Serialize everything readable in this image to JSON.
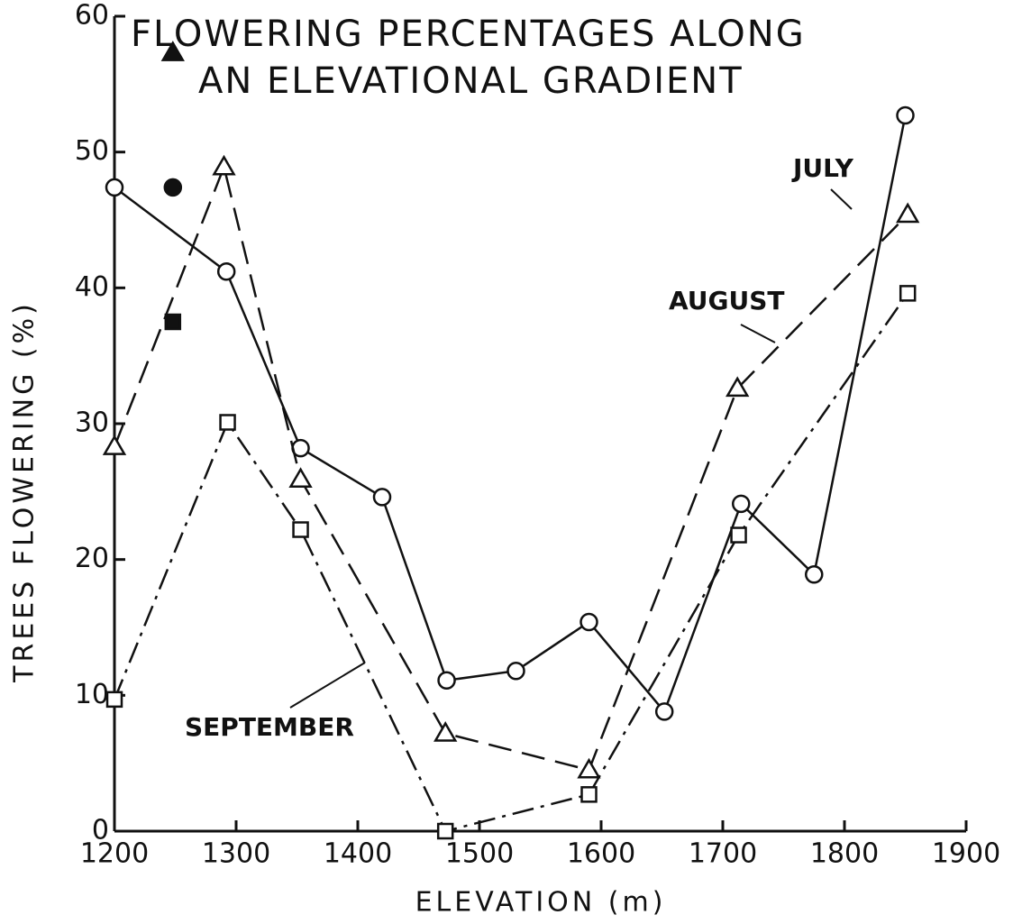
{
  "chart_data": {
    "type": "line",
    "title": [
      "FLOWERING PERCENTAGES ALONG",
      "AN ELEVATIONAL GRADIENT"
    ],
    "xlabel": "ELEVATION (m)",
    "ylabel": "TREES FLOWERING (%)",
    "xlim": [
      1200,
      1900
    ],
    "xticks": [
      1200,
      1300,
      1400,
      1500,
      1600,
      1700,
      1800,
      1900
    ],
    "ylim": [
      0,
      60
    ],
    "yticks": [
      0,
      10,
      20,
      30,
      40,
      50,
      60
    ],
    "series": [
      {
        "name": "JULY",
        "color": "#111",
        "marker": "circle",
        "dash": "solid",
        "x": [
          1200,
          1292,
          1353,
          1420,
          1473,
          1530,
          1590,
          1652,
          1715,
          1775,
          1850
        ],
        "values": [
          47.4,
          41.2,
          28.2,
          24.6,
          11.1,
          11.8,
          15.4,
          8.8,
          24.1,
          18.9,
          52.7
        ]
      },
      {
        "name": "AUGUST",
        "color": "#111",
        "marker": "triangle",
        "dash": "dashed",
        "x": [
          1200,
          1290,
          1353,
          1472,
          1590,
          1712,
          1852
        ],
        "values": [
          28.3,
          48.9,
          25.9,
          7.2,
          4.5,
          32.6,
          45.4
        ]
      },
      {
        "name": "SEPTEMBER",
        "color": "#111",
        "marker": "square",
        "dash": "dashdot",
        "x": [
          1200,
          1293,
          1353,
          1472,
          1590,
          1713,
          1852
        ],
        "values": [
          9.7,
          30.1,
          22.2,
          0,
          2.7,
          21.8,
          39.6
        ]
      },
      {
        "color": "#111",
        "marker": "triangle",
        "filled": true,
        "x": [
          1248
        ],
        "values": [
          57.3
        ]
      },
      {
        "color": "#111",
        "marker": "circle",
        "filled": true,
        "x": [
          1248
        ],
        "values": [
          47.4
        ]
      },
      {
        "color": "#111",
        "marker": "square",
        "filled": true,
        "x": [
          1248
        ],
        "values": [
          37.5
        ]
      }
    ]
  }
}
